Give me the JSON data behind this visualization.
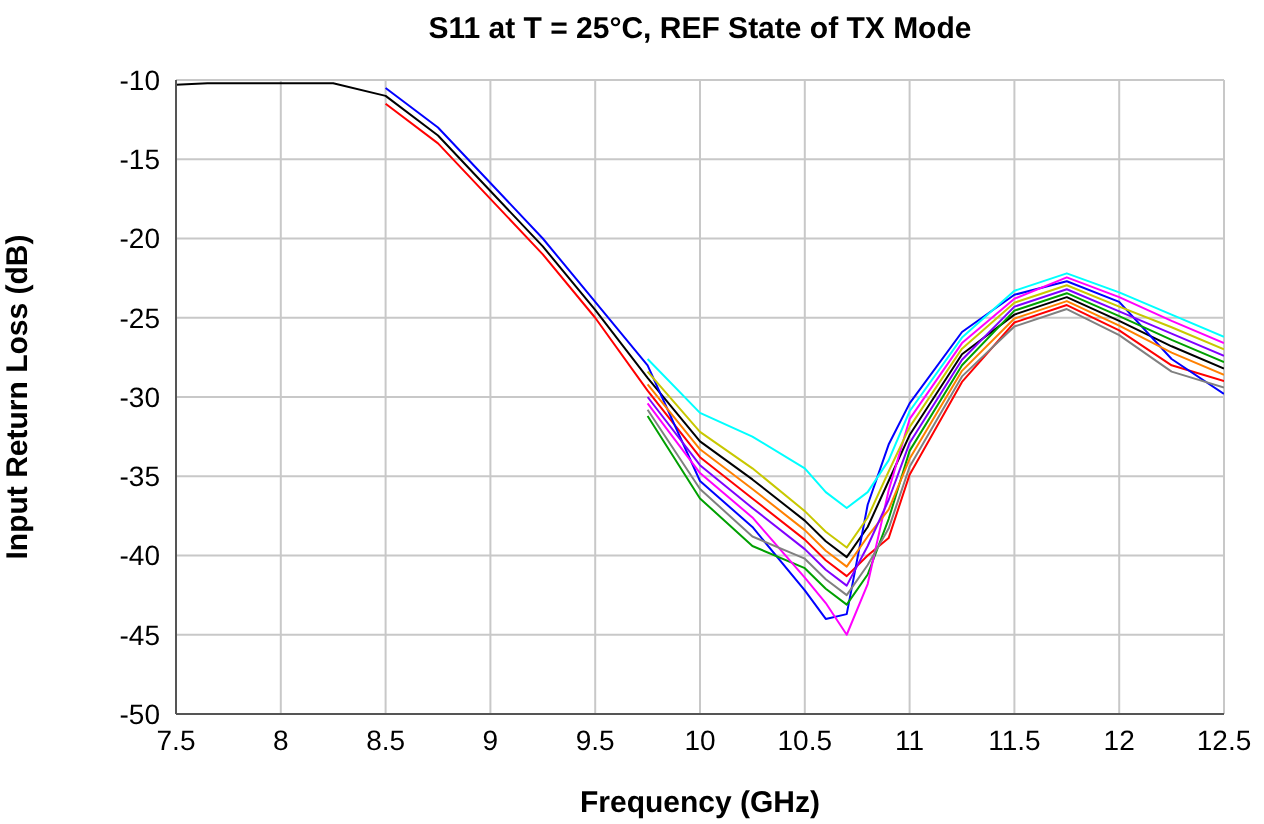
{
  "chart_data": {
    "type": "line",
    "title": "S11 at T = 25°C, REF State of TX Mode",
    "xlabel": "Frequency (GHz)",
    "ylabel": "Input Return Loss (dB)",
    "x": [
      7.5,
      7.65,
      8.25,
      8.5,
      8.75,
      9,
      9.25,
      9.5,
      9.75,
      10,
      10.25,
      10.5,
      10.6,
      10.7,
      10.8,
      10.9,
      11,
      11.25,
      11.5,
      11.75,
      12,
      12.25,
      12.5
    ],
    "series": [
      {
        "color": "#000000",
        "values": [
          -10.3,
          -10.2,
          -10.2,
          -11,
          -13.5,
          -17,
          -20.5,
          -24.5,
          -28.8,
          -32.8,
          -35.2,
          -37.8,
          -39.1,
          -40.1,
          -38.2,
          -35.3,
          -32.4,
          -27.3,
          -24.8,
          -23.7,
          -25.2,
          -26.8,
          -28.2
        ]
      },
      {
        "color": "#ff0000",
        "values": [
          null,
          null,
          null,
          -11.5,
          -14,
          -17.5,
          -21,
          -25,
          -29.6,
          -33.8,
          -36.4,
          -39,
          -40.3,
          -41.3,
          -40,
          -38.9,
          -34.9,
          -29.05,
          -25.3,
          -24.2,
          -25.8,
          -28,
          -29
        ]
      },
      {
        "color": "#0000ff",
        "values": [
          null,
          null,
          null,
          -10.5,
          -13,
          -16.5,
          -20,
          -24,
          -28,
          -35.3,
          -38.2,
          -42.2,
          -44,
          -43.7,
          -36.8,
          -33,
          -30.4,
          -25.9,
          -23.55,
          -22.7,
          -24,
          -27.6,
          -29.8
        ]
      },
      {
        "color": "#00a000",
        "values": [
          null,
          null,
          null,
          null,
          null,
          null,
          null,
          null,
          -31.2,
          -36.4,
          -39.4,
          -40.8,
          -42.1,
          -43.1,
          -41.2,
          -37.7,
          -33.4,
          -28,
          -24.55,
          -23.45,
          -24.9,
          -26.4,
          -27.8
        ]
      },
      {
        "color": "#ff00ff",
        "values": [
          null,
          null,
          null,
          null,
          null,
          null,
          null,
          null,
          -30.4,
          -34.8,
          -37.6,
          -41.4,
          -43,
          -45,
          -41.8,
          -35.9,
          -31.4,
          -26.6,
          -23.8,
          -22.45,
          -23.7,
          -25.2,
          -26.6
        ]
      },
      {
        "color": "#00ffff",
        "values": [
          null,
          null,
          null,
          null,
          null,
          null,
          null,
          null,
          -27.6,
          -31,
          -32.5,
          -34.5,
          -36,
          -37,
          -36,
          -34,
          -30.9,
          -26.25,
          -23.3,
          -22.2,
          -23.4,
          -24.8,
          -26.2
        ]
      },
      {
        "color": "#ff8000",
        "values": [
          null,
          null,
          null,
          null,
          null,
          null,
          null,
          null,
          -29.2,
          -33.3,
          -35.8,
          -38.4,
          -39.7,
          -40.7,
          -38.8,
          -37.1,
          -33.9,
          -28.35,
          -25.05,
          -23.95,
          -25.5,
          -27.2,
          -28.6
        ]
      },
      {
        "color": "#8000ff",
        "values": [
          null,
          null,
          null,
          null,
          null,
          null,
          null,
          null,
          -30,
          -34.3,
          -37,
          -39.6,
          -40.9,
          -41.9,
          -39.4,
          -36.5,
          -32.9,
          -27.65,
          -24.3,
          -23.2,
          -24.6,
          -26,
          -27.4
        ]
      },
      {
        "color": "#c8c800",
        "values": [
          null,
          null,
          null,
          null,
          null,
          null,
          null,
          null,
          -28.4,
          -32.2,
          -34.5,
          -37.2,
          -38.5,
          -39.5,
          -37.6,
          -34.7,
          -31.9,
          -26.95,
          -24.05,
          -22.95,
          -24.3,
          -25.6,
          -27
        ]
      },
      {
        "color": "#808080",
        "values": [
          null,
          null,
          null,
          null,
          null,
          null,
          null,
          null,
          -30.8,
          -35.8,
          -38.8,
          -40.2,
          -41.5,
          -42.5,
          -40.6,
          -38.3,
          -34.4,
          -28.7,
          -25.55,
          -24.45,
          -26.1,
          -28.4,
          -29.4
        ]
      }
    ],
    "xlim": [
      7.5,
      12.5
    ],
    "xticks": [
      7.5,
      8,
      8.5,
      9,
      9.5,
      10,
      10.5,
      11,
      11.5,
      12,
      12.5
    ],
    "ylim": [
      -50,
      -10
    ],
    "yticks": [
      -50,
      -45,
      -40,
      -35,
      -30,
      -25,
      -20,
      -15,
      -10
    ],
    "grid": true,
    "marker": "none",
    "line_style": "solid"
  }
}
